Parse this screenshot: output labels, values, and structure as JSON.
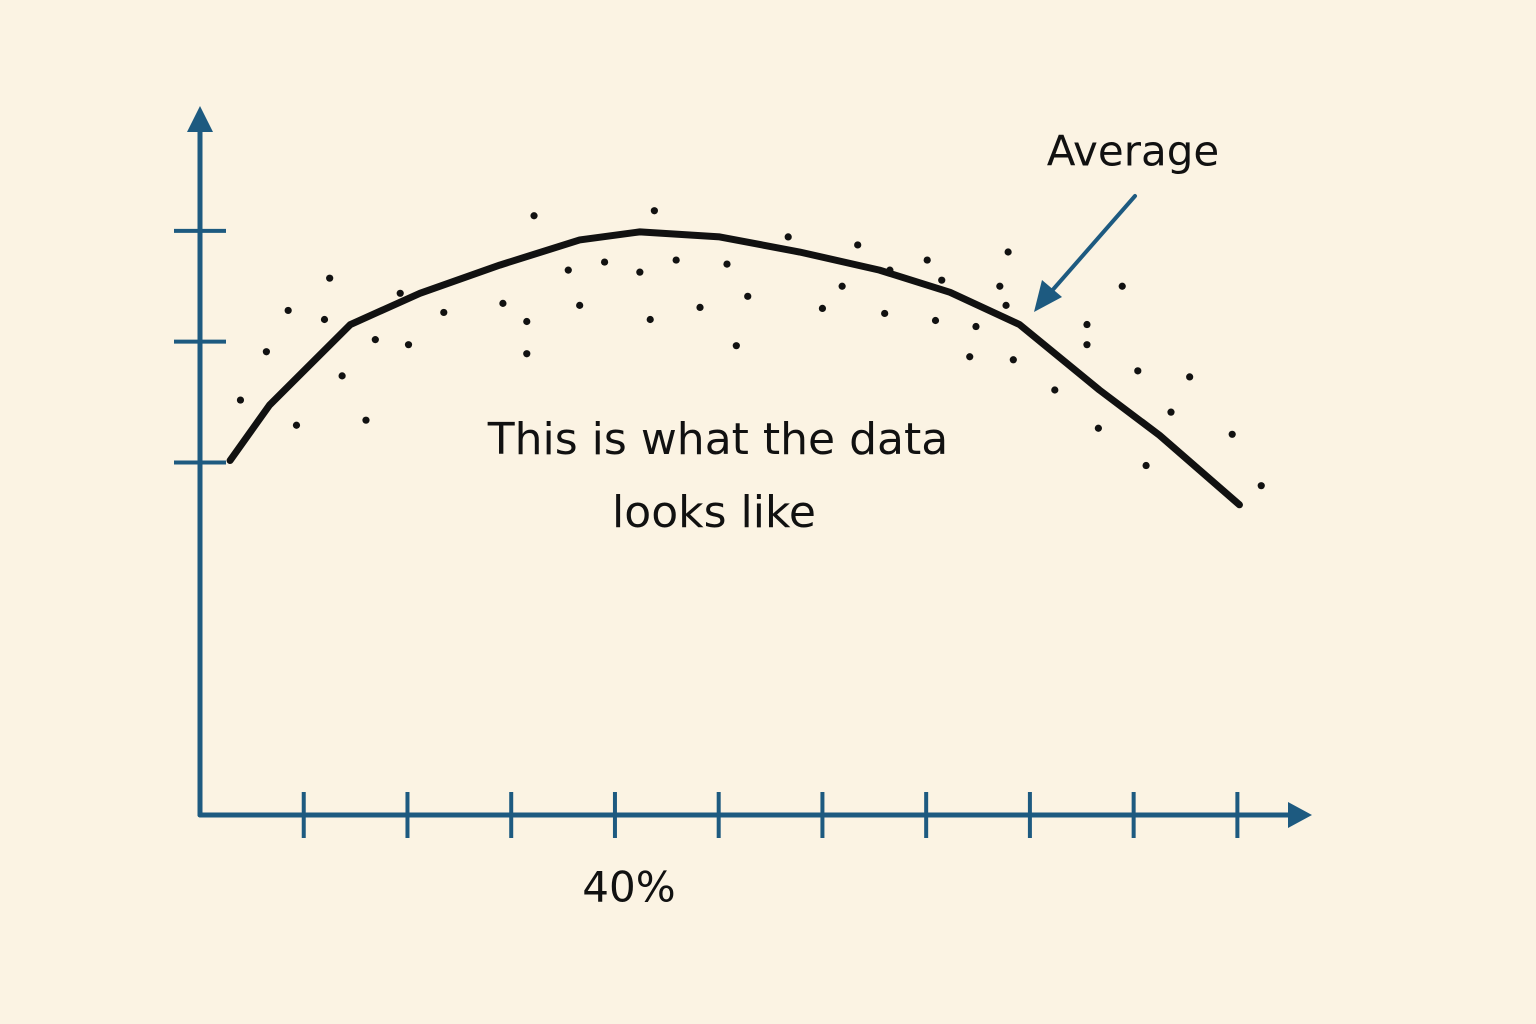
{
  "chart_data": {
    "type": "scatter",
    "xlim": [
      0,
      107
    ],
    "ylim": [
      0,
      7
    ],
    "xticks": [
      {
        "value": 40,
        "label": "40%"
      }
    ],
    "xminorticks": [
      10,
      20,
      30,
      40,
      50,
      60,
      70,
      80,
      90,
      100
    ],
    "yminorticks": [
      3.5,
      4.7,
      5.8
    ],
    "axis_color": "#1d5a80",
    "series": [
      {
        "type": "scatter",
        "color": "#111111",
        "x": [
          3.9,
          6.4,
          8.5,
          9.3,
          12.0,
          12.5,
          13.7,
          16.0,
          16.9,
          19.3,
          20.1,
          23.5,
          29.2,
          31.5,
          31.5,
          32.2,
          35.5,
          36.6,
          39.0,
          42.4,
          43.4,
          43.8,
          45.9,
          48.2,
          50.8,
          51.7,
          52.8,
          56.7,
          60.0,
          61.9,
          63.4,
          66.0,
          66.5,
          70.1,
          70.9,
          71.5,
          74.2,
          74.8,
          77.1,
          77.7,
          77.9,
          78.4,
          82.4,
          85.5,
          85.5,
          86.6,
          88.9,
          90.4,
          91.2,
          93.6,
          95.4,
          99.5,
          102.3
        ],
        "values": [
          4.12,
          4.6,
          5.01,
          3.87,
          4.92,
          5.33,
          4.36,
          3.92,
          4.72,
          5.18,
          4.67,
          4.99,
          5.08,
          4.9,
          4.58,
          5.95,
          5.41,
          5.06,
          5.49,
          5.39,
          4.92,
          6.0,
          5.51,
          5.04,
          5.47,
          4.66,
          5.15,
          5.74,
          5.03,
          5.25,
          5.66,
          4.98,
          5.41,
          5.51,
          4.91,
          5.31,
          4.55,
          4.85,
          5.25,
          5.06,
          5.59,
          4.52,
          4.22,
          4.87,
          4.67,
          3.84,
          5.25,
          4.41,
          3.47,
          4.0,
          4.35,
          3.78,
          3.27
        ]
      },
      {
        "type": "line",
        "name": "Average",
        "color": "#111111",
        "x": [
          2.9,
          6.7,
          14.5,
          21.2,
          28.9,
          36.6,
          42.4,
          50.1,
          57.8,
          65.5,
          72.3,
          79.0,
          86.7,
          92.5,
          100.2
        ],
        "values": [
          3.52,
          4.07,
          4.87,
          5.18,
          5.46,
          5.71,
          5.79,
          5.74,
          5.59,
          5.41,
          5.19,
          4.87,
          4.22,
          3.77,
          3.08
        ]
      }
    ],
    "note_lines": [
      "This is what the data",
      "looks like"
    ]
  }
}
